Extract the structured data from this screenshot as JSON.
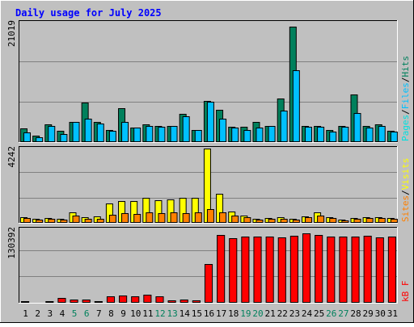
{
  "title": "Daily usage for July 2025",
  "colors": {
    "frame": "#c0c0c0",
    "panel": "#c0c0c0",
    "title_text": "#0000ff",
    "grid": "#808080",
    "hits": "#00805c",
    "files": "#00c0ff",
    "pages": "#00e0e0",
    "visits": "#ffff00",
    "sites": "#ff8000",
    "kbf": "#ff0000",
    "weekend_label": "#00805c",
    "weekday_label": "#000000"
  },
  "chart_data": [
    {
      "type": "bar",
      "panel": "hits-files-pages",
      "ymax_label": "21019",
      "ylim": [
        0,
        21019
      ],
      "legend": [
        {
          "name": "Pages",
          "color_key": "pages"
        },
        {
          "name": "/",
          "color_key": "separator"
        },
        {
          "name": "Files",
          "color_key": "files"
        },
        {
          "name": "/",
          "color_key": "separator"
        },
        {
          "name": "Hits",
          "color_key": "hits"
        }
      ],
      "categories": [
        "1",
        "2",
        "3",
        "4",
        "5",
        "6",
        "7",
        "8",
        "9",
        "10",
        "11",
        "12",
        "13",
        "14",
        "15",
        "16",
        "17",
        "18",
        "19",
        "20",
        "21",
        "22",
        "23",
        "24",
        "25",
        "26",
        "27",
        "28",
        "29",
        "30",
        "31"
      ],
      "series": [
        {
          "name": "Hits",
          "color_key": "hits",
          "values": [
            2400,
            1100,
            3100,
            2000,
            3500,
            6900,
            3500,
            2100,
            6000,
            2600,
            3100,
            2800,
            2900,
            4900,
            2200,
            7300,
            5700,
            2700,
            2700,
            3600,
            2900,
            7700,
            20300,
            2900,
            2900,
            2200,
            2800,
            8400,
            2800,
            3100,
            2000
          ]
        },
        {
          "name": "Files",
          "color_key": "files",
          "values": [
            1700,
            800,
            2900,
            1400,
            3500,
            4100,
            3300,
            2000,
            3600,
            2500,
            2900,
            2700,
            2800,
            4600,
            2100,
            7100,
            4100,
            2500,
            2200,
            2500,
            2800,
            5500,
            12700,
            2700,
            2700,
            1900,
            2700,
            5100,
            2600,
            2800,
            1900
          ]
        }
      ]
    },
    {
      "type": "bar",
      "panel": "visits-sites",
      "ymax_label": "4242",
      "ylim": [
        0,
        4242
      ],
      "legend": [
        {
          "name": "Sites",
          "color_key": "sites"
        },
        {
          "name": "/",
          "color_key": "separator"
        },
        {
          "name": "Visits",
          "color_key": "visits"
        }
      ],
      "categories": [
        "1",
        "2",
        "3",
        "4",
        "5",
        "6",
        "7",
        "8",
        "9",
        "10",
        "11",
        "12",
        "13",
        "14",
        "15",
        "16",
        "17",
        "18",
        "19",
        "20",
        "21",
        "22",
        "23",
        "24",
        "25",
        "26",
        "27",
        "28",
        "29",
        "30",
        "31"
      ],
      "series": [
        {
          "name": "Visits",
          "color_key": "visits",
          "values": [
            300,
            230,
            270,
            230,
            600,
            330,
            350,
            1100,
            1250,
            1250,
            1450,
            1280,
            1350,
            1450,
            1450,
            4242,
            1680,
            650,
            430,
            230,
            270,
            300,
            230,
            380,
            600,
            320,
            200,
            280,
            330,
            300,
            270
          ]
        },
        {
          "name": "Sites",
          "color_key": "sites",
          "values": [
            260,
            200,
            220,
            200,
            400,
            240,
            250,
            450,
            550,
            500,
            600,
            550,
            600,
            550,
            600,
            800,
            600,
            430,
            330,
            200,
            230,
            230,
            200,
            330,
            400,
            280,
            160,
            230,
            260,
            260,
            230
          ]
        }
      ]
    },
    {
      "type": "bar",
      "panel": "kbf",
      "ymax_label": "130392",
      "ylim": [
        0,
        130392
      ],
      "legend": [
        {
          "name": "kB F",
          "color_key": "kbf"
        }
      ],
      "categories": [
        "1",
        "2",
        "3",
        "4",
        "5",
        "6",
        "7",
        "8",
        "9",
        "10",
        "11",
        "12",
        "13",
        "14",
        "15",
        "16",
        "17",
        "18",
        "19",
        "20",
        "21",
        "22",
        "23",
        "24",
        "25",
        "26",
        "27",
        "28",
        "29",
        "30",
        "31"
      ],
      "series": [
        {
          "name": "kB F",
          "color_key": "kbf",
          "values": [
            3500,
            2000,
            3500,
            9000,
            6000,
            6000,
            3500,
            11000,
            13500,
            11000,
            14000,
            11000,
            5000,
            6000,
            5000,
            69000,
            121000,
            115000,
            118000,
            117000,
            117000,
            116000,
            119000,
            123000,
            120000,
            117000,
            117000,
            117000,
            119000,
            116000,
            117000
          ]
        }
      ]
    }
  ],
  "x_axis": {
    "labels": [
      "1",
      "2",
      "3",
      "4",
      "5",
      "6",
      "7",
      "8",
      "9",
      "10",
      "11",
      "12",
      "13",
      "14",
      "15",
      "16",
      "17",
      "18",
      "19",
      "20",
      "21",
      "22",
      "23",
      "24",
      "25",
      "26",
      "27",
      "28",
      "29",
      "30",
      "31"
    ],
    "weekend": [
      false,
      false,
      false,
      false,
      true,
      true,
      false,
      false,
      false,
      false,
      false,
      true,
      true,
      false,
      false,
      false,
      false,
      false,
      true,
      true,
      false,
      false,
      false,
      false,
      false,
      true,
      true,
      false,
      false,
      false,
      false
    ]
  }
}
